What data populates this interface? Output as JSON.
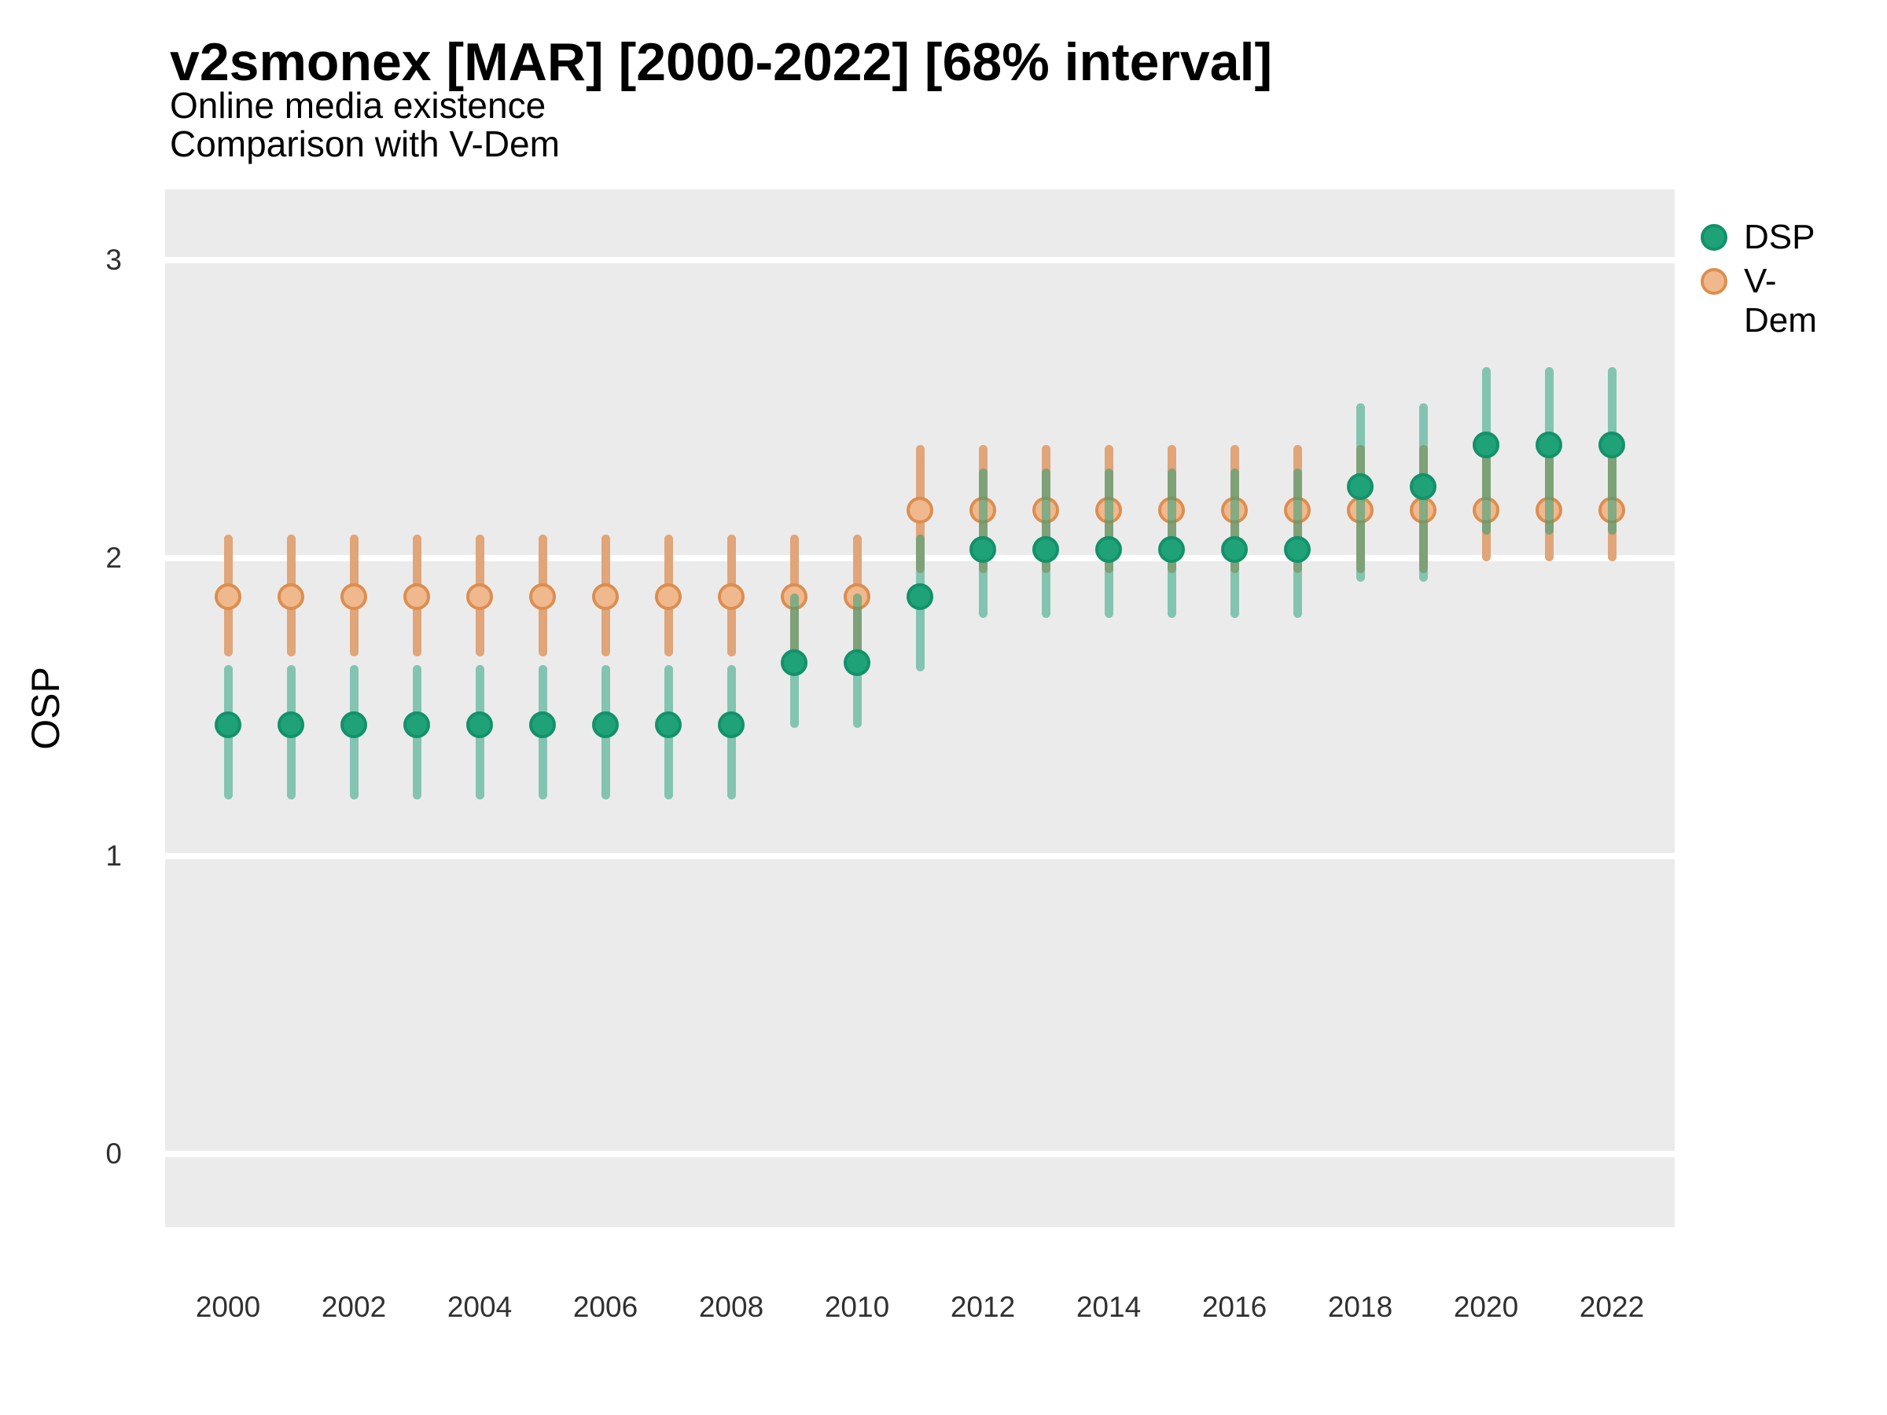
{
  "header": {
    "title": "v2smonex [MAR] [2000-2022] [68% interval]",
    "subtitle_line1": "Online media existence",
    "subtitle_line2": "Comparison with V-Dem"
  },
  "y_axis_title": "OSP",
  "legend": {
    "items": [
      {
        "label": "DSP",
        "color": "#1FA278",
        "border": "#13916A"
      },
      {
        "label": "V-Dem",
        "color": "#EFB88D",
        "border": "#DC8E50"
      }
    ]
  },
  "colors": {
    "panel_background": "#EBEBEB",
    "gridline": "#FFFFFF",
    "dsp_point": "#1FA278",
    "dsp_interval": "rgba(27,158,119,0.5)",
    "vdem_point": "#EFB88D",
    "vdem_interval": "#E0A579",
    "axis_text": "#303030"
  },
  "chart_data": {
    "type": "scatter",
    "title": "v2smonex [MAR] [2000-2022] [68% interval]",
    "subtitle": "Online media existence / Comparison with V-Dem",
    "xlabel": "",
    "ylabel": "OSP",
    "interval_level": "68%",
    "grid": "major-horizontal",
    "legend_position": "right-top",
    "x": [
      2000,
      2001,
      2002,
      2003,
      2004,
      2005,
      2006,
      2007,
      2008,
      2009,
      2010,
      2011,
      2012,
      2013,
      2014,
      2015,
      2016,
      2017,
      2018,
      2019,
      2020,
      2021,
      2022
    ],
    "x_tick_labels": [
      "2000",
      "2002",
      "2004",
      "2006",
      "2008",
      "2010",
      "2012",
      "2014",
      "2016",
      "2018",
      "2020",
      "2022"
    ],
    "x_tick_years": [
      2000,
      2002,
      2004,
      2006,
      2008,
      2010,
      2012,
      2014,
      2016,
      2018,
      2020,
      2022
    ],
    "y_ticks": [
      0,
      1,
      2,
      3
    ],
    "ylim": [
      -0.25,
      3.25
    ],
    "xlim": [
      1999,
      2023
    ],
    "series": [
      {
        "name": "V-Dem",
        "est": [
          1.87,
          1.87,
          1.87,
          1.87,
          1.87,
          1.87,
          1.87,
          1.87,
          1.87,
          1.87,
          1.87,
          2.16,
          2.16,
          2.16,
          2.16,
          2.16,
          2.16,
          2.16,
          2.16,
          2.16,
          2.16,
          2.16,
          2.16
        ],
        "lo": [
          1.67,
          1.67,
          1.67,
          1.67,
          1.67,
          1.67,
          1.67,
          1.67,
          1.67,
          1.67,
          1.67,
          1.95,
          1.95,
          1.95,
          1.95,
          1.95,
          1.95,
          1.95,
          1.95,
          1.95,
          1.99,
          1.99,
          1.99
        ],
        "hi": [
          2.08,
          2.08,
          2.08,
          2.08,
          2.08,
          2.08,
          2.08,
          2.08,
          2.08,
          2.08,
          2.08,
          2.38,
          2.38,
          2.38,
          2.38,
          2.38,
          2.38,
          2.38,
          2.38,
          2.38,
          2.38,
          2.38,
          2.38
        ]
      },
      {
        "name": "DSP",
        "est": [
          1.44,
          1.44,
          1.44,
          1.44,
          1.44,
          1.44,
          1.44,
          1.44,
          1.44,
          1.65,
          1.65,
          1.87,
          2.03,
          2.03,
          2.03,
          2.03,
          2.03,
          2.03,
          2.24,
          2.24,
          2.38,
          2.38,
          2.38
        ],
        "lo": [
          1.19,
          1.19,
          1.19,
          1.19,
          1.19,
          1.19,
          1.19,
          1.19,
          1.19,
          1.43,
          1.43,
          1.62,
          1.8,
          1.8,
          1.8,
          1.8,
          1.8,
          1.8,
          1.92,
          1.92,
          2.08,
          2.08,
          2.08
        ],
        "hi": [
          1.64,
          1.64,
          1.64,
          1.64,
          1.64,
          1.64,
          1.64,
          1.64,
          1.64,
          1.88,
          1.88,
          2.08,
          2.3,
          2.3,
          2.3,
          2.3,
          2.3,
          2.3,
          2.52,
          2.52,
          2.64,
          2.64,
          2.64
        ]
      }
    ]
  }
}
